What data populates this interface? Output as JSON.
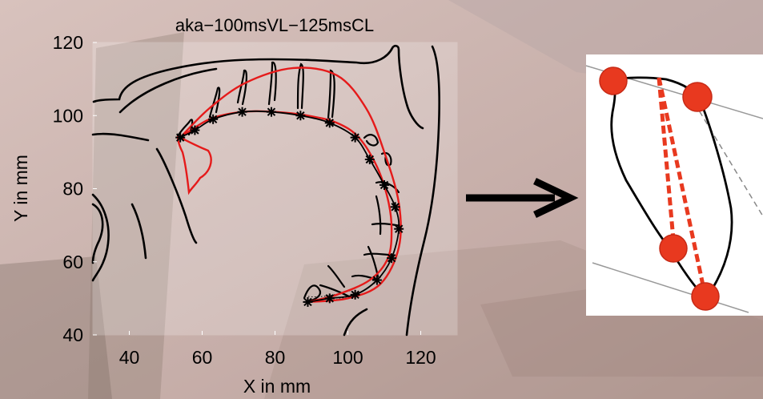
{
  "chart_data": {
    "type": "line",
    "title": "aka−100msVL−125msCL",
    "xlabel": "X in mm",
    "ylabel": "Y in mm",
    "xlim": [
      30,
      130
    ],
    "ylim": [
      40,
      120
    ],
    "xticks": [
      40,
      60,
      80,
      100,
      120
    ],
    "yticks": [
      40,
      60,
      80,
      100,
      120
    ],
    "grid": false,
    "series": [
      {
        "role": "outer-contour",
        "color": "#e51a1a",
        "points": [
          [
            54,
            94
          ],
          [
            62,
            102
          ],
          [
            72,
            109
          ],
          [
            85,
            113
          ],
          [
            97,
            111
          ],
          [
            105,
            102
          ],
          [
            110,
            90
          ],
          [
            114,
            76
          ],
          [
            114,
            64
          ],
          [
            109,
            54
          ],
          [
            100,
            50
          ],
          [
            89,
            49
          ]
        ]
      },
      {
        "role": "inner-contour",
        "color": "#e51a1a",
        "points": [
          [
            54,
            94
          ],
          [
            62,
            99
          ],
          [
            71,
            101
          ],
          [
            80,
            101
          ],
          [
            89,
            100
          ],
          [
            97,
            98
          ],
          [
            103,
            94
          ],
          [
            108,
            86
          ],
          [
            111,
            77
          ],
          [
            112,
            69
          ],
          [
            111,
            61
          ],
          [
            106,
            55
          ],
          [
            97,
            51
          ],
          [
            89,
            49
          ]
        ]
      },
      {
        "role": "marker-track",
        "color": "#000000",
        "markers": "star",
        "points": [
          [
            54,
            94
          ],
          [
            58,
            96
          ],
          [
            63,
            99
          ],
          [
            71,
            101
          ],
          [
            79,
            101
          ],
          [
            87,
            100
          ],
          [
            95,
            98
          ],
          [
            102,
            94
          ],
          [
            106,
            88
          ],
          [
            110,
            81
          ],
          [
            113,
            75
          ],
          [
            114,
            69
          ],
          [
            112,
            61
          ],
          [
            108,
            55
          ],
          [
            102,
            51
          ],
          [
            95,
            50
          ],
          [
            89,
            49
          ]
        ]
      }
    ]
  },
  "colors": {
    "contour": "#e51a1a",
    "marker_dot": "#e8391f",
    "dashed_line": "#e8391f",
    "arrow": "#000000",
    "frame": "#ffffff"
  },
  "inset": {
    "description_icon": "tongue-sensor-diagram-icon",
    "sensor_count": 4
  }
}
